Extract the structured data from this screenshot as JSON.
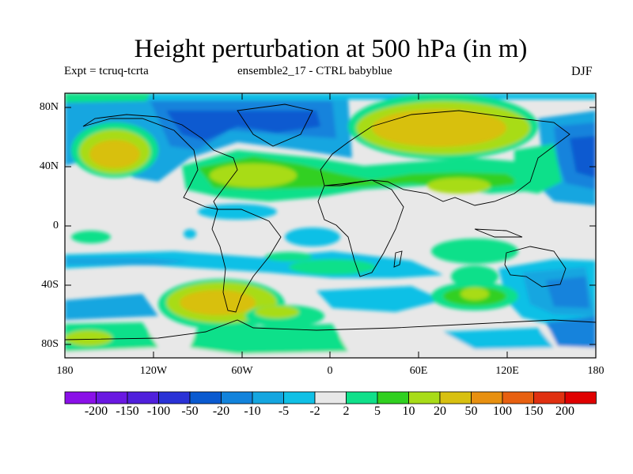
{
  "title": "Height perturbation at 500 hPa (in m)",
  "subtitle_left": "Expt = tcruq-tcrta",
  "subtitle_center": "ensemble2_17 - CTRL babyblue",
  "subtitle_right": "DJF",
  "lat_labels": [
    "80N",
    "40N",
    "0",
    "40S",
    "80S"
  ],
  "lon_labels": [
    "180",
    "120W",
    "60W",
    "0",
    "60E",
    "120E",
    "180"
  ],
  "colorbar": {
    "labels": [
      "-200",
      "-150",
      "-100",
      "-50",
      "-20",
      "-10",
      "-5",
      "-2",
      "2",
      "5",
      "10",
      "20",
      "50",
      "100",
      "150",
      "200"
    ],
    "colors": [
      "#8a10e8",
      "#6a18e2",
      "#5020dc",
      "#2a32d6",
      "#0a5ad0",
      "#1283dc",
      "#14a6e0",
      "#10c0e6",
      "#e8e8e8",
      "#10e08a",
      "#30d020",
      "#a8dc18",
      "#d8c010",
      "#e89010",
      "#e86010",
      "#e03010",
      "#e00000"
    ]
  }
}
